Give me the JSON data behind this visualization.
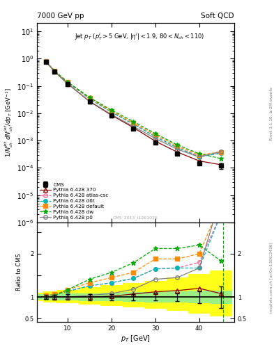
{
  "title_left": "7000 GeV pp",
  "title_right": "Soft QCD",
  "watermark": "CMS_2013_I1261026",
  "rivet_label": "Rivet 3.1.10, ≥ 2M events",
  "mcplots_label": "mcplots.cern.ch [arXiv:1306.3436]",
  "ylabel_ratio": "Ratio to CMS",
  "xlim": [
    3,
    48
  ],
  "ylim_main": [
    1e-06,
    20
  ],
  "ylim_ratio": [
    0.42,
    2.72
  ],
  "cms_x": [
    5,
    7,
    10,
    15,
    20,
    25,
    30,
    35,
    40,
    45
  ],
  "cms_y": [
    0.78,
    0.34,
    0.12,
    0.027,
    0.0083,
    0.0028,
    0.00085,
    0.00033,
    0.00015,
    0.00012
  ],
  "cms_yerr": [
    0.04,
    0.02,
    0.008,
    0.002,
    0.0006,
    0.0002,
    7e-05,
    3e-05,
    2e-05,
    3e-05
  ],
  "p370_x": [
    5,
    7,
    10,
    15,
    20,
    25,
    30,
    35,
    40,
    45
  ],
  "p370_y": [
    0.79,
    0.34,
    0.12,
    0.027,
    0.0085,
    0.003,
    0.00095,
    0.00038,
    0.00018,
    0.00013
  ],
  "patlas_x": [
    5,
    7,
    10,
    15,
    20,
    25,
    30,
    35,
    40,
    45
  ],
  "patlas_y": [
    0.8,
    0.36,
    0.135,
    0.034,
    0.011,
    0.004,
    0.0014,
    0.00055,
    0.00027,
    0.00035
  ],
  "pd6t_x": [
    5,
    7,
    10,
    15,
    20,
    25,
    30,
    35,
    40,
    45
  ],
  "pd6t_y": [
    0.8,
    0.36,
    0.135,
    0.034,
    0.011,
    0.004,
    0.0014,
    0.00055,
    0.00025,
    0.00035
  ],
  "pdefault_x": [
    5,
    7,
    10,
    15,
    20,
    25,
    30,
    35,
    40,
    45
  ],
  "pdefault_y": [
    0.8,
    0.36,
    0.14,
    0.036,
    0.012,
    0.0044,
    0.0016,
    0.00062,
    0.0003,
    0.00038
  ],
  "pdw_x": [
    5,
    7,
    10,
    15,
    20,
    25,
    30,
    35,
    40,
    45
  ],
  "pdw_y": [
    0.77,
    0.35,
    0.14,
    0.038,
    0.013,
    0.005,
    0.0018,
    0.0007,
    0.00033,
    0.00022
  ],
  "pp0_x": [
    5,
    7,
    10,
    15,
    20,
    25,
    30,
    35,
    40,
    45
  ],
  "pp0_y": [
    0.79,
    0.34,
    0.12,
    0.028,
    0.009,
    0.0033,
    0.0012,
    0.00048,
    0.00025,
    0.0004
  ],
  "ratio_p370": [
    1.01,
    1.0,
    1.0,
    1.0,
    1.02,
    1.07,
    1.12,
    1.15,
    1.2,
    1.08
  ],
  "ratio_patlas": [
    1.03,
    1.06,
    1.13,
    1.26,
    1.33,
    1.43,
    1.65,
    1.67,
    1.8,
    2.92
  ],
  "ratio_pd6t": [
    1.03,
    1.06,
    1.13,
    1.26,
    1.33,
    1.43,
    1.65,
    1.67,
    1.67,
    2.92
  ],
  "ratio_pdefault": [
    1.03,
    1.06,
    1.17,
    1.33,
    1.45,
    1.57,
    1.88,
    1.88,
    2.0,
    3.17
  ],
  "ratio_pdw": [
    0.99,
    1.03,
    1.17,
    1.41,
    1.57,
    1.79,
    2.12,
    2.12,
    2.2,
    1.83
  ],
  "ratio_pp0": [
    1.01,
    1.0,
    1.0,
    1.04,
    1.08,
    1.18,
    1.41,
    1.45,
    1.67,
    3.33
  ],
  "green_band_lo": [
    0.94,
    0.93,
    0.92,
    0.91,
    0.9,
    0.89,
    0.88,
    0.87,
    0.86,
    0.85
  ],
  "green_band_hi": [
    1.06,
    1.07,
    1.08,
    1.09,
    1.1,
    1.11,
    1.12,
    1.13,
    1.14,
    1.15
  ],
  "yellow_band_lo": [
    0.9,
    0.88,
    0.86,
    0.83,
    0.8,
    0.77,
    0.73,
    0.68,
    0.62,
    0.55
  ],
  "yellow_band_hi": [
    1.1,
    1.13,
    1.17,
    1.22,
    1.27,
    1.32,
    1.38,
    1.45,
    1.53,
    1.62
  ],
  "color_cms": "#000000",
  "color_p370": "#8b0000",
  "color_patlas": "#ff6699",
  "color_pd6t": "#00b8b8",
  "color_pdefault": "#ff8c00",
  "color_pdw": "#00aa00",
  "color_pp0": "#808080",
  "vline_x": 45.5,
  "bg_color": "#ffffff"
}
